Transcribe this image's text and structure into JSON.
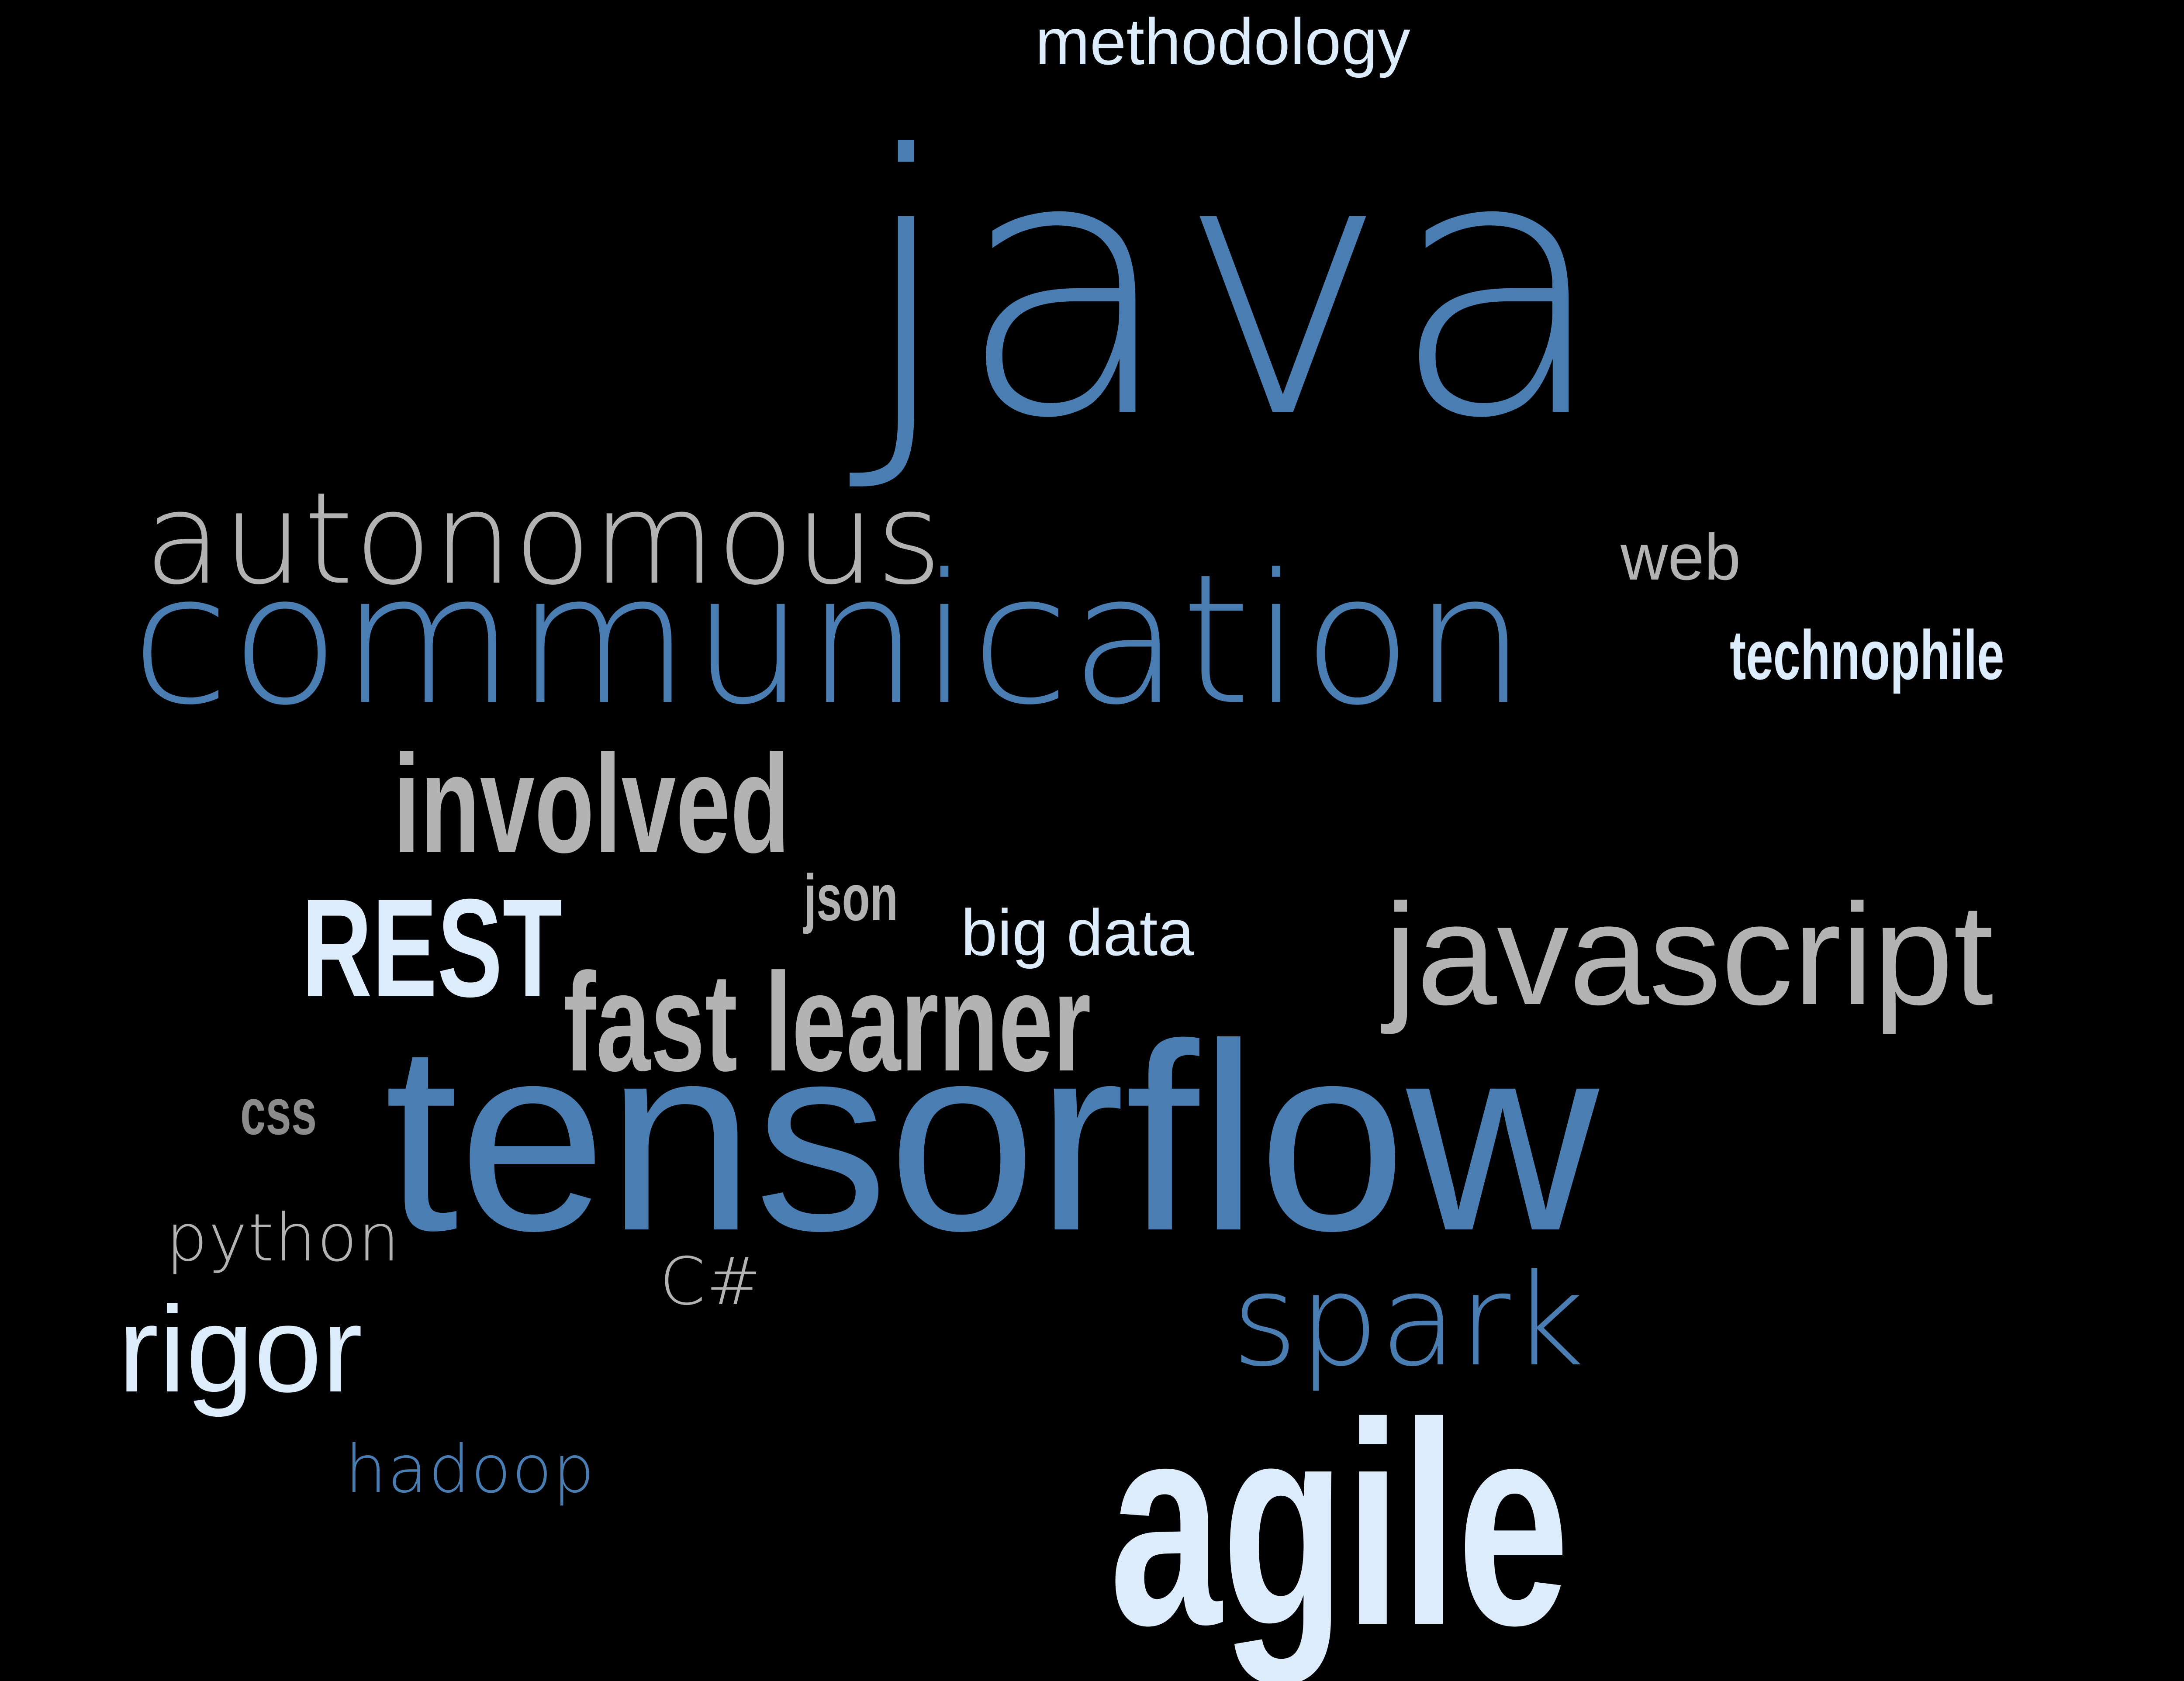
{
  "words": {
    "methodology": "methodology",
    "java": "java",
    "autonomous": "autonomous",
    "web": "web",
    "communication": "communication",
    "technophile": "technophile",
    "involved": "involved",
    "json": "json",
    "rest": "REST",
    "big_data": "big data",
    "javascript": "javascript",
    "fast_learner": "fast learner",
    "css": "css",
    "tensorflow": "tensorflow",
    "python": "python",
    "csharp": "C#",
    "rigor": "rigor",
    "spark": "spark",
    "hadoop": "hadoop",
    "agile": "agile"
  },
  "colors": {
    "background": "#000000",
    "blue": "#4a7eb3",
    "gray": "#b3b3b3",
    "light": "#dcecfb",
    "dark_gray": "#8c8c8c"
  }
}
